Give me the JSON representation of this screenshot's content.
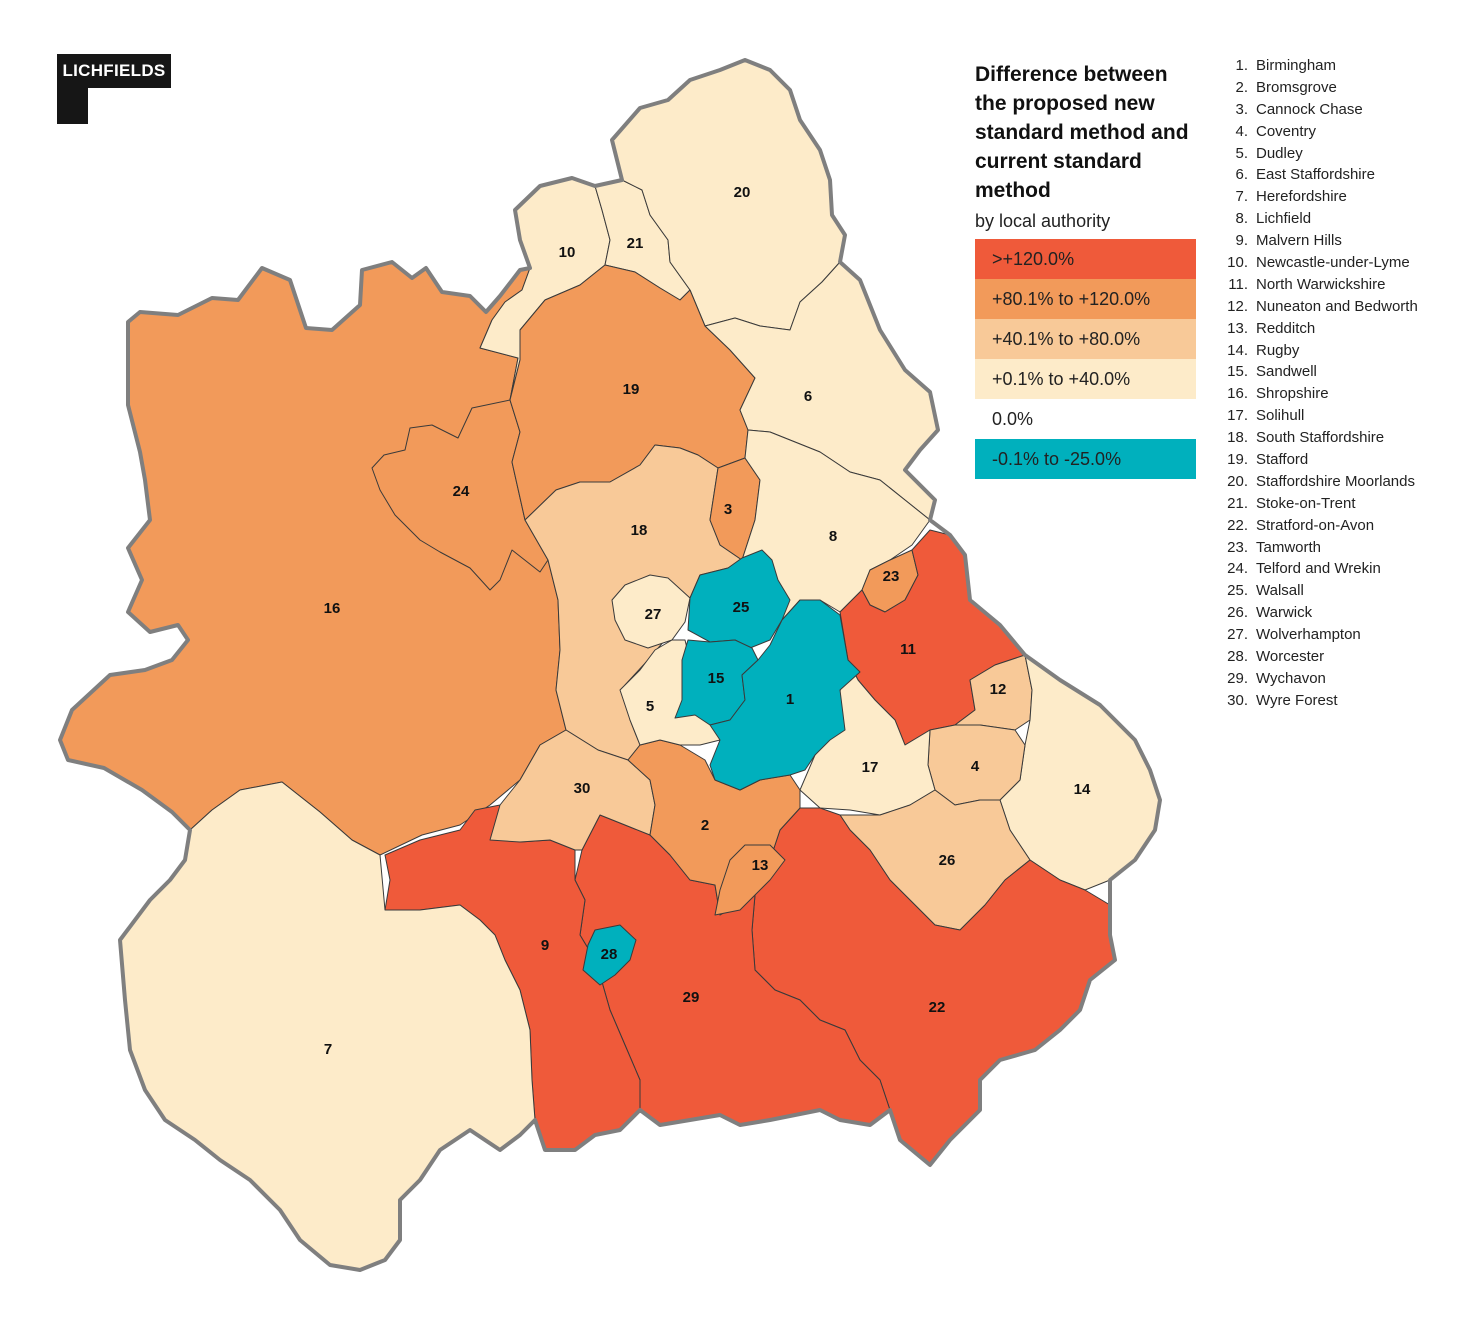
{
  "logo_text": "LICHFIELDS",
  "legend": {
    "title": "Difference between the proposed new standard method and current standard method",
    "subtitle": "by local authority",
    "items": [
      {
        "label": ">+120.0%",
        "color": "#ef5a3a"
      },
      {
        "label": "+80.1% to +120.0%",
        "color": "#f29a5a"
      },
      {
        "label": "+40.1% to +80.0%",
        "color": "#f8c998"
      },
      {
        "label": "+0.1% to +40.0%",
        "color": "#fdebc9"
      },
      {
        "label": "0.0%",
        "color": "#ffffff"
      },
      {
        "label": "-0.1% to -25.0%",
        "color": "#00b0bd"
      }
    ]
  },
  "authorities": [
    {
      "num": "1.",
      "id": "1",
      "name": "Birmingham",
      "band": 5
    },
    {
      "num": "2.",
      "id": "2",
      "name": "Bromsgrove",
      "band": 1
    },
    {
      "num": "3.",
      "id": "3",
      "name": "Cannock Chase",
      "band": 1
    },
    {
      "num": "4.",
      "id": "4",
      "name": "Coventry",
      "band": 2
    },
    {
      "num": "5.",
      "id": "5",
      "name": "Dudley",
      "band": 3
    },
    {
      "num": "6.",
      "id": "6",
      "name": "East Staffordshire",
      "band": 3
    },
    {
      "num": "7.",
      "id": "7",
      "name": "Herefordshire",
      "band": 3
    },
    {
      "num": "8.",
      "id": "8",
      "name": "Lichfield",
      "band": 3
    },
    {
      "num": "9.",
      "id": "9",
      "name": "Malvern Hills",
      "band": 0
    },
    {
      "num": "10.",
      "id": "10",
      "name": "Newcastle-under-Lyme",
      "band": 3
    },
    {
      "num": "11.",
      "id": "11",
      "name": "North Warwickshire",
      "band": 0
    },
    {
      "num": "12.",
      "id": "12",
      "name": "Nuneaton and Bedworth",
      "band": 2
    },
    {
      "num": "13.",
      "id": "13",
      "name": "Redditch",
      "band": 1
    },
    {
      "num": "14.",
      "id": "14",
      "name": "Rugby",
      "band": 3
    },
    {
      "num": "15.",
      "id": "15",
      "name": "Sandwell",
      "band": 5
    },
    {
      "num": "16.",
      "id": "16",
      "name": "Shropshire",
      "band": 1
    },
    {
      "num": "17.",
      "id": "17",
      "name": "Solihull",
      "band": 3
    },
    {
      "num": "18.",
      "id": "18",
      "name": "South Staffordshire",
      "band": 2
    },
    {
      "num": "19.",
      "id": "19",
      "name": "Stafford",
      "band": 1
    },
    {
      "num": "20.",
      "id": "20",
      "name": "Staffordshire Moorlands",
      "band": 3
    },
    {
      "num": "21.",
      "id": "21",
      "name": "Stoke-on-Trent",
      "band": 3
    },
    {
      "num": "22.",
      "id": "22",
      "name": "Stratford-on-Avon",
      "band": 0
    },
    {
      "num": "23.",
      "id": "23",
      "name": "Tamworth",
      "band": 1
    },
    {
      "num": "24.",
      "id": "24",
      "name": "Telford and Wrekin",
      "band": 1
    },
    {
      "num": "25.",
      "id": "25",
      "name": "Walsall",
      "band": 5
    },
    {
      "num": "26.",
      "id": "26",
      "name": "Warwick",
      "band": 2
    },
    {
      "num": "27.",
      "id": "27",
      "name": "Wolverhampton",
      "band": 3
    },
    {
      "num": "28.",
      "id": "28",
      "name": "Worcester",
      "band": 5
    },
    {
      "num": "29.",
      "id": "29",
      "name": "Wychavon",
      "band": 0
    },
    {
      "num": "30.",
      "id": "30",
      "name": "Wyre Forest",
      "band": 2
    }
  ]
}
